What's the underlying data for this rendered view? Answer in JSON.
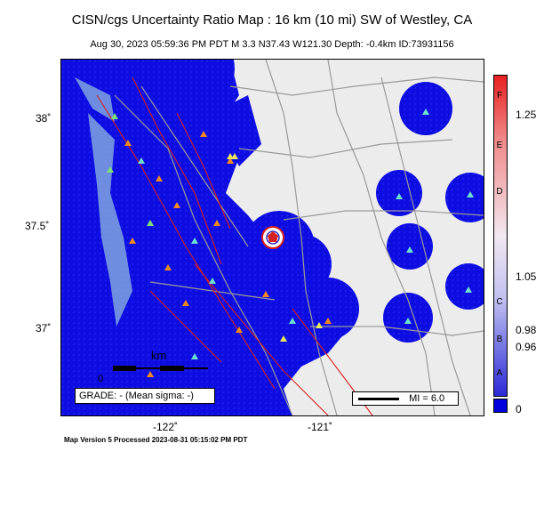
{
  "header": {
    "title": "CISN/cgs Uncertainty Ratio Map : 16  km (10 mi) SW of Westley, CA",
    "subtitle": "Aug 30, 2023 05:59:36 PM PDT    M 3.3    N37.43 W121.30    Depth: -0.4km    ID:73931156"
  },
  "axes": {
    "lat_labels": [
      "38˚",
      "37.5˚",
      "37˚"
    ],
    "lon_labels": [
      "-122˚",
      "-121˚"
    ]
  },
  "scalebar": {
    "unit": "km",
    "zero": "0"
  },
  "grade_box": "GRADE: - (Mean sigma: -)",
  "legend_mi": "MI = 6.0",
  "colorbar": {
    "letters": [
      "F",
      "E",
      "D",
      "C",
      "B",
      "A"
    ],
    "values": [
      "1.25",
      "1.05",
      "0.98",
      "0.96"
    ],
    "zero_value": "0",
    "colors": {
      "top": "#e82020",
      "mid": "#f2e8f0",
      "bottom": "#2a2ad8",
      "null": "#0000dd"
    }
  },
  "footer": "Map Version 5 Processed 2023-08-31 05:15:02 PM PDT",
  "colors": {
    "ocean": "#7a9be0",
    "coverage": "#0a0ae0",
    "land": "#ececec",
    "fault": "#d42020",
    "roads": "#9a9a9a"
  }
}
